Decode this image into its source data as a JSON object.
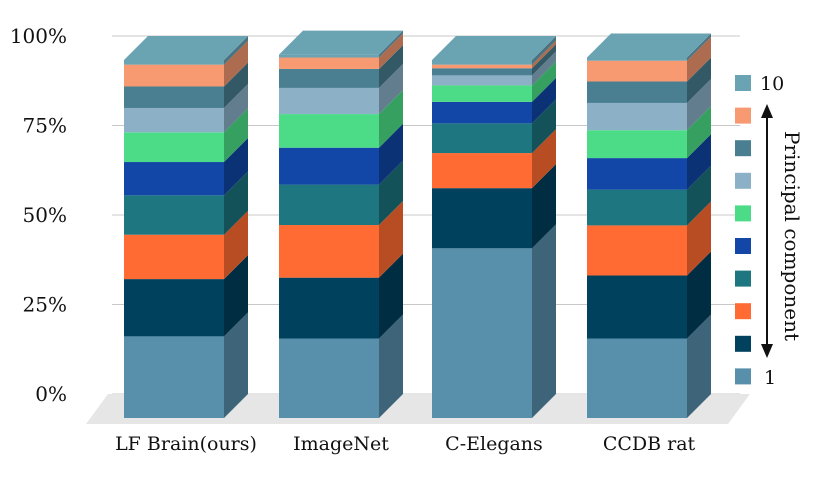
{
  "chart_data": {
    "type": "bar",
    "stacked": true,
    "style": "3d",
    "categories": [
      "LF Brain(ours)",
      "ImageNet",
      "C-Elegans",
      "CCDB rat"
    ],
    "y_ticks": [
      "0%",
      "25%",
      "50%",
      "75%",
      "100%"
    ],
    "ylim": [
      0,
      100
    ],
    "grid": true,
    "legend_position": "right",
    "legend": {
      "top_label": "10",
      "bottom_label": "1",
      "title": "Principal component",
      "colors_top_to_bottom": [
        "#6aa3b2",
        "#f79a72",
        "#4a7f92",
        "#8cb1c7",
        "#4cdc88",
        "#1247a8",
        "#1e7681",
        "#ff6b33",
        "#00415e",
        "#5890ab"
      ]
    },
    "series": [
      {
        "color": "#5890ab",
        "side": "#3d6478",
        "values": [
          22.8,
          22.2,
          47.4,
          22.2
        ]
      },
      {
        "color": "#00415e",
        "side": "#002d42",
        "values": [
          16.0,
          17.0,
          16.8,
          17.6
        ]
      },
      {
        "color": "#ff6b33",
        "side": "#b84c22",
        "values": [
          12.4,
          14.7,
          9.8,
          14.0
        ]
      },
      {
        "color": "#1e7681",
        "side": "#14525a",
        "values": [
          11.0,
          11.3,
          8.3,
          10.0
        ]
      },
      {
        "color": "#1247a8",
        "side": "#0c3276",
        "values": [
          9.3,
          10.3,
          6.0,
          8.8
        ]
      },
      {
        "color": "#4cdc88",
        "side": "#35a060",
        "values": [
          8.3,
          9.4,
          4.6,
          7.8
        ]
      },
      {
        "color": "#8cb1c7",
        "side": "#627d8d",
        "values": [
          6.8,
          7.3,
          2.8,
          7.6
        ]
      },
      {
        "color": "#4a7f92",
        "side": "#335966",
        "values": [
          6.0,
          5.3,
          2.0,
          6.0
        ]
      },
      {
        "color": "#f79a72",
        "side": "#ad6c50",
        "values": [
          6.1,
          3.2,
          1.0,
          5.8
        ]
      },
      {
        "color": "#6aa3b2",
        "side": "#4a7280",
        "values": [
          1.3,
          0.8,
          1.3,
          0.9
        ]
      }
    ]
  }
}
